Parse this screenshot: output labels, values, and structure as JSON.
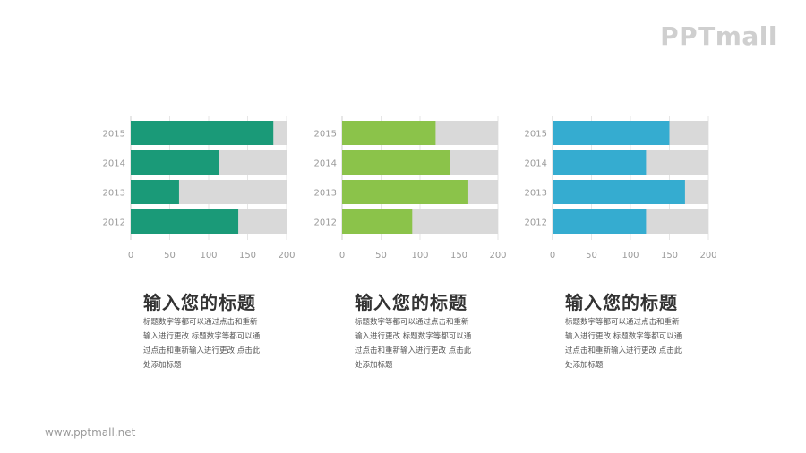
{
  "logo": "PPTmall",
  "footer_url": "www.pptmall.net",
  "chart_data": [
    {
      "type": "bar",
      "orientation": "horizontal",
      "stacked_with_track": true,
      "categories": [
        "2015",
        "2014",
        "2013",
        "2012"
      ],
      "values": [
        183,
        113,
        62,
        138
      ],
      "xlim": [
        0,
        200
      ],
      "xticks": [
        "0",
        "50",
        "100",
        "150",
        "200"
      ],
      "bar_color": "#1a9a78",
      "track_color": "#d9d9d9",
      "grid": true,
      "caption_title": "输入您的标题",
      "caption_lines": [
        "标题数字等都可以通过点击和重新",
        "输入进行更改 标题数字等都可以通",
        "过点击和重新输入进行更改 点击此",
        "处添加标题"
      ]
    },
    {
      "type": "bar",
      "orientation": "horizontal",
      "stacked_with_track": true,
      "categories": [
        "2015",
        "2014",
        "2013",
        "2012"
      ],
      "values": [
        120,
        138,
        162,
        90
      ],
      "xlim": [
        0,
        200
      ],
      "xticks": [
        "0",
        "50",
        "100",
        "150",
        "200"
      ],
      "bar_color": "#8bc34a",
      "track_color": "#d9d9d9",
      "grid": true,
      "caption_title": "输入您的标题",
      "caption_lines": [
        "标题数字等都可以通过点击和重新",
        "输入进行更改 标题数字等都可以通",
        "过点击和重新输入进行更改 点击此",
        "处添加标题"
      ]
    },
    {
      "type": "bar",
      "orientation": "horizontal",
      "stacked_with_track": true,
      "categories": [
        "2015",
        "2014",
        "2013",
        "2012"
      ],
      "values": [
        150,
        120,
        170,
        120
      ],
      "xlim": [
        0,
        200
      ],
      "xticks": [
        "0",
        "50",
        "100",
        "150",
        "200"
      ],
      "bar_color": "#35acd0",
      "track_color": "#d9d9d9",
      "grid": true,
      "caption_title": "输入您的标题",
      "caption_lines": [
        "标题数字等都可以通过点击和重新",
        "输入进行更改 标题数字等都可以通",
        "过点击和重新输入进行更改 点击此",
        "处添加标题"
      ]
    }
  ]
}
